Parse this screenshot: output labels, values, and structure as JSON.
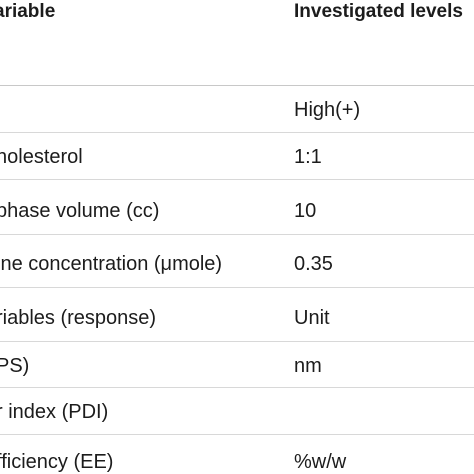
{
  "table": {
    "header": {
      "variable": "ariable",
      "levels": "Investigated levels"
    },
    "rows": [
      {
        "variable": "",
        "level": ""
      },
      {
        "variable": "",
        "level": "High(+)"
      },
      {
        "variable": "holesterol",
        "level": "1:1"
      },
      {
        "variable": "phase volume (cc)",
        "level": "10"
      },
      {
        "variable": "ine concentration (μmole)",
        "level": "0.35"
      },
      {
        "variable": "riables (response)",
        "level": "Unit"
      },
      {
        "variable": "PS)",
        "level": "nm"
      },
      {
        "variable": "r index (PDI)",
        "level": ""
      },
      {
        "variable": "fficiency (EE)",
        "level": "%w/w"
      }
    ]
  }
}
